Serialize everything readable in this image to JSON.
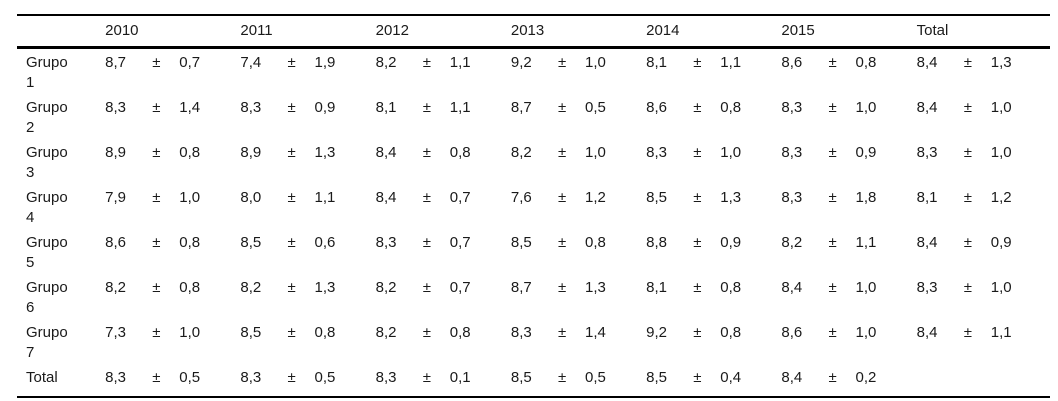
{
  "table": {
    "plus_minus": "±",
    "columns": [
      "2010",
      "2011",
      "2012",
      "2013",
      "2014",
      "2015",
      "Total"
    ],
    "rows": [
      {
        "label": "Grupo 1",
        "values": [
          [
            "8,7",
            "0,7"
          ],
          [
            "7,4",
            "1,9"
          ],
          [
            "8,2",
            "1,1"
          ],
          [
            "9,2",
            "1,0"
          ],
          [
            "8,1",
            "1,1"
          ],
          [
            "8,6",
            "0,8"
          ],
          [
            "8,4",
            "1,3"
          ]
        ]
      },
      {
        "label": "Grupo 2",
        "values": [
          [
            "8,3",
            "1,4"
          ],
          [
            "8,3",
            "0,9"
          ],
          [
            "8,1",
            "1,1"
          ],
          [
            "8,7",
            "0,5"
          ],
          [
            "8,6",
            "0,8"
          ],
          [
            "8,3",
            "1,0"
          ],
          [
            "8,4",
            "1,0"
          ]
        ]
      },
      {
        "label": "Grupo 3",
        "values": [
          [
            "8,9",
            "0,8"
          ],
          [
            "8,9",
            "1,3"
          ],
          [
            "8,4",
            "0,8"
          ],
          [
            "8,2",
            "1,0"
          ],
          [
            "8,3",
            "1,0"
          ],
          [
            "8,3",
            "0,9"
          ],
          [
            "8,3",
            "1,0"
          ]
        ]
      },
      {
        "label": "Grupo 4",
        "values": [
          [
            "7,9",
            "1,0"
          ],
          [
            "8,0",
            "1,1"
          ],
          [
            "8,4",
            "0,7"
          ],
          [
            "7,6",
            "1,2"
          ],
          [
            "8,5",
            "1,3"
          ],
          [
            "8,3",
            "1,8"
          ],
          [
            "8,1",
            "1,2"
          ]
        ]
      },
      {
        "label": "Grupo 5",
        "values": [
          [
            "8,6",
            "0,8"
          ],
          [
            "8,5",
            "0,6"
          ],
          [
            "8,3",
            "0,7"
          ],
          [
            "8,5",
            "0,8"
          ],
          [
            "8,8",
            "0,9"
          ],
          [
            "8,2",
            "1,1"
          ],
          [
            "8,4",
            "0,9"
          ]
        ]
      },
      {
        "label": "Grupo 6",
        "values": [
          [
            "8,2",
            "0,8"
          ],
          [
            "8,2",
            "1,3"
          ],
          [
            "8,2",
            "0,7"
          ],
          [
            "8,7",
            "1,3"
          ],
          [
            "8,1",
            "0,8"
          ],
          [
            "8,4",
            "1,0"
          ],
          [
            "8,3",
            "1,0"
          ]
        ]
      },
      {
        "label": "Grupo 7",
        "values": [
          [
            "7,3",
            "1,0"
          ],
          [
            "8,5",
            "0,8"
          ],
          [
            "8,2",
            "0,8"
          ],
          [
            "8,3",
            "1,4"
          ],
          [
            "9,2",
            "0,8"
          ],
          [
            "8,6",
            "1,0"
          ],
          [
            "8,4",
            "1,1"
          ]
        ]
      },
      {
        "label": "Total",
        "values": [
          [
            "8,3",
            "0,5"
          ],
          [
            "8,3",
            "0,5"
          ],
          [
            "8,3",
            "0,1"
          ],
          [
            "8,5",
            "0,5"
          ],
          [
            "8,5",
            "0,4"
          ],
          [
            "8,4",
            "0,2"
          ],
          null
        ]
      }
    ]
  }
}
